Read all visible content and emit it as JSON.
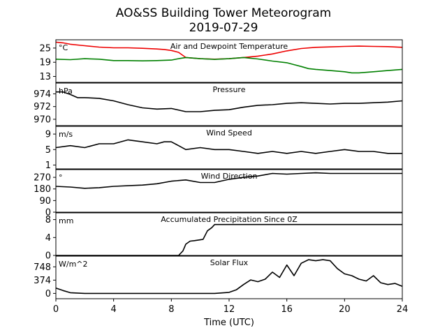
{
  "title_line1": "AO&SS Building Tower Meteorogram",
  "title_line2": "2019-07-29",
  "xlabel": "Time (UTC)",
  "colors": {
    "temperature": "#ee0000",
    "dewpoint": "#008000",
    "line": "#000000"
  },
  "chart_data": [
    {
      "type": "line",
      "title": "Air and Dewpoint Temperature",
      "unit": "°C",
      "xlim": [
        0,
        24
      ],
      "ylim": [
        10.5,
        28.5
      ],
      "yticks": [
        13,
        19,
        25
      ],
      "xticks": [
        0,
        4,
        8,
        12,
        16,
        20,
        24
      ],
      "series": [
        {
          "color": "#ee0000",
          "x": [
            0,
            0.5,
            1,
            2,
            3,
            4,
            5,
            6,
            7,
            7.5,
            8,
            8.5,
            9,
            10,
            11,
            12,
            13,
            14,
            15,
            16,
            17,
            18,
            19,
            20,
            21,
            22,
            23,
            24
          ],
          "y": [
            27.5,
            27.2,
            26.6,
            26.0,
            25.4,
            25.1,
            25.1,
            24.9,
            24.6,
            24.4,
            24.0,
            23.2,
            21.0,
            20.5,
            20.3,
            20.5,
            21.0,
            21.6,
            22.5,
            23.8,
            24.8,
            25.3,
            25.5,
            25.7,
            25.8,
            25.7,
            25.6,
            25.3
          ]
        },
        {
          "color": "#008000",
          "x": [
            0,
            1,
            2,
            3,
            4,
            5,
            6,
            7,
            8,
            8.5,
            9,
            10,
            11,
            12,
            13,
            14,
            15,
            16,
            16.5,
            17,
            17.5,
            18,
            19,
            20,
            20.5,
            21,
            22,
            23,
            24
          ],
          "y": [
            20.3,
            20.1,
            20.5,
            20.3,
            19.7,
            19.7,
            19.6,
            19.7,
            19.9,
            20.5,
            21.0,
            20.5,
            20.2,
            20.5,
            21.0,
            20.4,
            19.5,
            18.8,
            18.0,
            17.2,
            16.3,
            16.0,
            15.5,
            15.0,
            14.5,
            14.5,
            15.0,
            15.5,
            16.0
          ]
        }
      ]
    },
    {
      "type": "line",
      "title": "Pressure",
      "unit": "hPa",
      "xlim": [
        0,
        24
      ],
      "ylim": [
        969.0,
        975.7
      ],
      "yticks": [
        970,
        972,
        974
      ],
      "series": [
        {
          "color": "#000000",
          "x": [
            0,
            0.5,
            1,
            1.5,
            2,
            3,
            4,
            5,
            6,
            7,
            8,
            9,
            10,
            11,
            12,
            13,
            14,
            15,
            16,
            17,
            18,
            19,
            20,
            21,
            22,
            23,
            24
          ],
          "y": [
            974.3,
            974.3,
            973.9,
            973.4,
            973.4,
            973.3,
            972.9,
            972.3,
            971.8,
            971.6,
            971.7,
            971.2,
            971.2,
            971.4,
            971.5,
            971.9,
            972.2,
            972.3,
            972.5,
            972.6,
            972.5,
            972.4,
            972.5,
            972.5,
            972.6,
            972.7,
            972.9
          ]
        }
      ]
    },
    {
      "type": "line",
      "title": "Wind Speed",
      "unit": "m/s",
      "xlim": [
        0,
        24
      ],
      "ylim": [
        0,
        11
      ],
      "yticks": [
        1,
        5,
        9
      ],
      "series": [
        {
          "color": "#000000",
          "x": [
            0,
            1,
            2,
            3,
            4,
            5,
            6,
            7,
            7.5,
            8,
            8.5,
            9,
            10,
            11,
            12,
            13,
            14,
            15,
            16,
            17,
            18,
            19,
            20,
            21,
            22,
            23,
            24
          ],
          "y": [
            5.5,
            6.0,
            5.5,
            6.5,
            6.5,
            7.5,
            7.0,
            6.5,
            7.0,
            7.0,
            6.0,
            5.0,
            5.5,
            5.0,
            5.0,
            4.5,
            4.0,
            4.5,
            4.0,
            4.5,
            4.0,
            4.5,
            5.0,
            4.5,
            4.5,
            4.0,
            4.0
          ]
        }
      ]
    },
    {
      "type": "line",
      "title": "Wind Direction",
      "unit": "°",
      "xlim": [
        0,
        24
      ],
      "ylim": [
        0,
        330
      ],
      "yticks": [
        0,
        90,
        180,
        270
      ],
      "series": [
        {
          "color": "#000000",
          "x": [
            0,
            1,
            2,
            3,
            4,
            5,
            6,
            7,
            8,
            9,
            10,
            11,
            12,
            13,
            14,
            15,
            16,
            17,
            18,
            19,
            20,
            21,
            22,
            23,
            24
          ],
          "y": [
            200,
            195,
            185,
            190,
            200,
            205,
            210,
            220,
            240,
            250,
            230,
            230,
            255,
            270,
            280,
            300,
            295,
            300,
            305,
            300,
            300,
            300,
            300,
            300,
            300
          ]
        }
      ]
    },
    {
      "type": "line",
      "title": "Accumulated Precipitation Since 0Z",
      "unit": "mm",
      "xlim": [
        0,
        24
      ],
      "ylim": [
        0,
        9.5
      ],
      "yticks": [
        0,
        4,
        8
      ],
      "series": [
        {
          "color": "#000000",
          "x": [
            0,
            8.5,
            8.8,
            9.0,
            9.3,
            9.6,
            10.2,
            10.5,
            10.8,
            11.0,
            24
          ],
          "y": [
            0,
            0,
            1.0,
            2.5,
            3.2,
            3.3,
            3.6,
            5.5,
            6.2,
            6.9,
            6.9
          ]
        }
      ]
    },
    {
      "type": "line",
      "title": "Solar Flux",
      "unit": "W/m^2",
      "xlim": [
        0,
        24
      ],
      "ylim": [
        -150,
        1050
      ],
      "yticks": [
        0,
        374,
        748
      ],
      "series": [
        {
          "color": "#000000",
          "x": [
            0,
            0.5,
            1,
            2,
            4,
            6,
            8,
            10,
            11,
            12,
            12.5,
            13,
            13.5,
            14,
            14.5,
            15,
            15.5,
            16,
            16.5,
            17,
            17.5,
            18,
            18.5,
            19,
            19.5,
            20,
            20.5,
            21,
            21.5,
            22,
            22.5,
            23,
            23.5,
            24
          ],
          "y": [
            150,
            80,
            20,
            0,
            0,
            0,
            0,
            0,
            0,
            30,
            100,
            250,
            380,
            330,
            400,
            600,
            450,
            800,
            500,
            850,
            950,
            920,
            950,
            920,
            700,
            550,
            500,
            400,
            350,
            500,
            300,
            250,
            280,
            200
          ]
        }
      ]
    }
  ]
}
